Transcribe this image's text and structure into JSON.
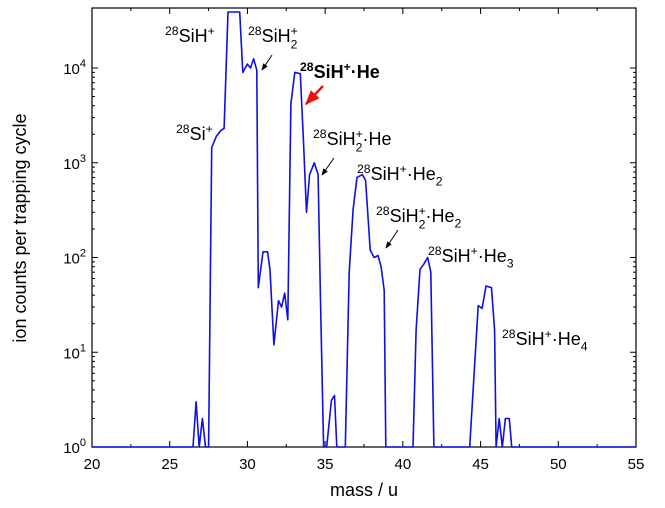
{
  "chart_data": {
    "type": "line",
    "xlabel": "mass / u",
    "ylabel": "ion counts per trapping cycle",
    "xlim": [
      20,
      55
    ],
    "xticks": [
      20,
      25,
      30,
      35,
      40,
      45,
      50,
      55
    ],
    "ylim": [
      1,
      43000
    ],
    "log_y": true,
    "yticks": [
      {
        "value": 1,
        "label": "10^0"
      },
      {
        "value": 10,
        "label": "10^1"
      },
      {
        "value": 100,
        "label": "10^2"
      },
      {
        "value": 1000,
        "label": "10^3"
      },
      {
        "value": 10000,
        "label": "10^4"
      }
    ],
    "series": [
      {
        "color": "#1010e0",
        "x": [
          20,
          26.5,
          26.7,
          26.9,
          27.1,
          27.3,
          27.5,
          27.7,
          28.0,
          28.3,
          28.5,
          28.75,
          29.5,
          29.7,
          30.0,
          30.2,
          30.4,
          30.6,
          30.7,
          31.0,
          31.3,
          31.45,
          31.7,
          32.0,
          32.2,
          32.4,
          32.6,
          32.8,
          33.05,
          33.4,
          33.6,
          33.8,
          34.0,
          34.3,
          34.55,
          34.7,
          34.9,
          35.1,
          35.4,
          35.6,
          35.75,
          36.3,
          36.55,
          36.8,
          37.05,
          37.4,
          37.6,
          37.9,
          38.15,
          38.4,
          38.6,
          38.8,
          38.9,
          40.65,
          40.85,
          41.1,
          41.35,
          41.6,
          41.8,
          42.0,
          44.3,
          44.85,
          45.1,
          45.35,
          45.7,
          45.9,
          46.0,
          46.2,
          46.4,
          46.6,
          46.85,
          47.0,
          55
        ],
        "values": [
          1,
          1,
          3,
          1,
          2,
          1,
          1,
          1450,
          1900,
          2200,
          2300,
          39000,
          39000,
          9000,
          11000,
          10000,
          12500,
          9500,
          48,
          115,
          115,
          74,
          12,
          35,
          30,
          42,
          22,
          4200,
          9000,
          8700,
          1750,
          300,
          750,
          1000,
          750,
          35,
          1,
          1,
          3.1,
          3.5,
          1,
          1,
          70,
          320,
          700,
          750,
          650,
          120,
          100,
          105,
          80,
          45,
          1,
          1,
          17,
          75,
          85,
          100,
          70,
          1,
          1,
          31,
          29,
          50,
          48,
          17,
          1,
          2,
          1,
          2,
          2,
          1,
          1
        ]
      }
    ],
    "annotations": [
      {
        "text": "^{28}SiH^{+}"
      },
      {
        "text": "^{28}SiH^{+}_{2}"
      },
      {
        "text": "^{28}SiH^{+}·He",
        "color": "#ee1111",
        "bold": true
      },
      {
        "text": "^{28}Si^{+}"
      },
      {
        "text": "^{28}SiH^{+}_{2}·He"
      },
      {
        "text": "^{28}SiH^{+}·He_{2}"
      },
      {
        "text": "^{28}SiH^{+}_{2}·He_{2}"
      },
      {
        "text": "^{28}SiH^{+}·He_{3}"
      },
      {
        "text": "^{28}SiH^{+}·He_{4}"
      }
    ]
  }
}
